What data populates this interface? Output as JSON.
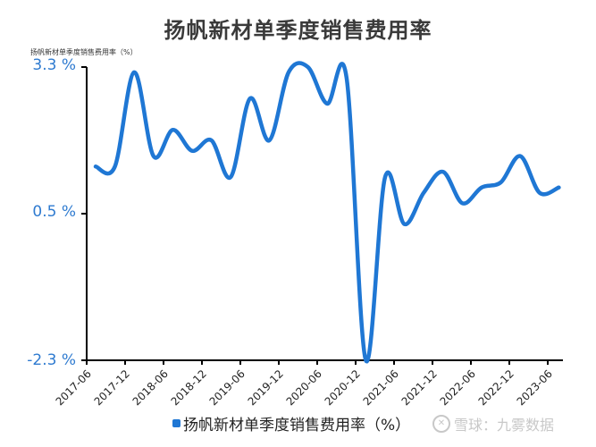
{
  "title": "扬帆新材单季度销售费用率",
  "unit_label": "扬帆新材单季度销售费用率（%）",
  "legend": {
    "label": "扬帆新材单季度销售费用率（%）",
    "color": "#1f77d4"
  },
  "watermark": {
    "text": "雪球：九雾数据"
  },
  "yaxis": {
    "ticks": [
      "3.3 %",
      "0.5 %",
      "-2.3 %"
    ]
  },
  "xaxis": {
    "ticks": [
      "2017-06",
      "2017-12",
      "2018-06",
      "2018-12",
      "2019-06",
      "2019-12",
      "2020-06",
      "2020-12",
      "2021-06",
      "2021-12",
      "2022-06",
      "2022-12",
      "2023-06"
    ]
  },
  "chart_data": {
    "type": "line",
    "title": "扬帆新材单季度销售费用率",
    "xlabel": "",
    "ylabel": "扬帆新材单季度销售费用率（%）",
    "ylim": [
      -2.3,
      3.3
    ],
    "y_ticks": [
      3.3,
      0.5,
      -2.3
    ],
    "grid": false,
    "legend_position": "bottom",
    "x_tick_labels": [
      "2017-06",
      "2017-12",
      "2018-06",
      "2018-12",
      "2019-06",
      "2019-12",
      "2020-06",
      "2020-12",
      "2021-06",
      "2021-12",
      "2022-06",
      "2022-12",
      "2023-06"
    ],
    "series": [
      {
        "name": "扬帆新材单季度销售费用率（%）",
        "color": "#1f77d4",
        "x": [
          "2017-Q2",
          "2017-Q3",
          "2017-Q4",
          "2018-Q1",
          "2018-Q2",
          "2018-Q3",
          "2018-Q4",
          "2019-Q1",
          "2019-Q2",
          "2019-Q3",
          "2019-Q4",
          "2020-Q1",
          "2020-Q2",
          "2020-Q3",
          "2020-Q4",
          "2021-Q1",
          "2021-Q2",
          "2021-Q3",
          "2021-Q4",
          "2022-Q1",
          "2022-Q2",
          "2022-Q3",
          "2022-Q4",
          "2023-Q1",
          "2023-Q2"
        ],
        "values": [
          1.4,
          1.4,
          3.2,
          1.6,
          2.1,
          1.7,
          1.9,
          1.2,
          2.7,
          1.9,
          3.2,
          3.3,
          2.6,
          3.1,
          -2.3,
          1.2,
          0.3,
          0.9,
          1.3,
          0.7,
          1.0,
          1.1,
          1.6,
          0.9,
          1.0
        ]
      }
    ]
  }
}
